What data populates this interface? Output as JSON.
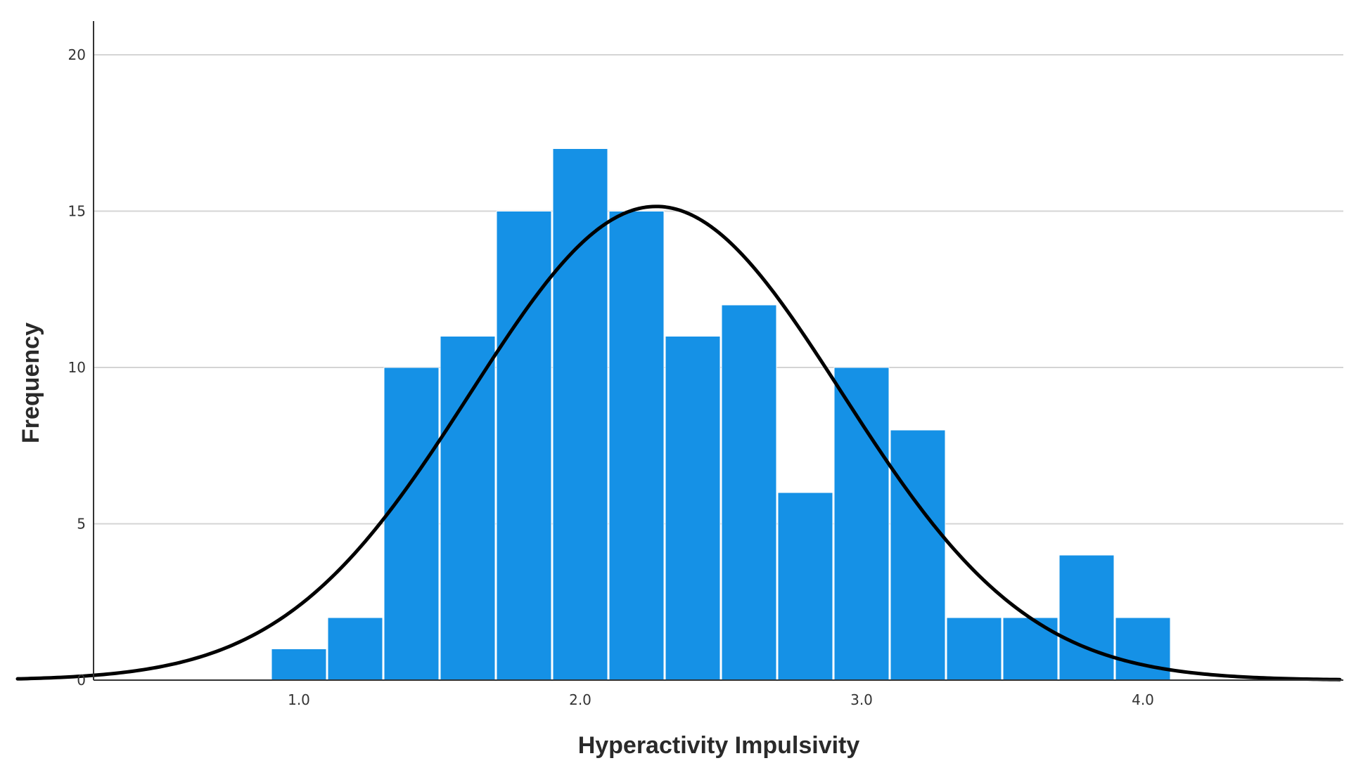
{
  "chart_data": {
    "type": "bar",
    "subtype": "histogram",
    "xlabel": "Hyperactivity Impulsivity",
    "ylabel": "Frequency",
    "x_ticks": [
      "1.0",
      "2.0",
      "3.0",
      "4.0"
    ],
    "x_tick_values": [
      1.0,
      2.0,
      3.0,
      4.0
    ],
    "y_ticks": [
      "0",
      "5",
      "10",
      "15",
      "20"
    ],
    "y_tick_values": [
      0,
      5,
      10,
      15,
      20
    ],
    "xlim": [
      0.0,
      4.7
    ],
    "ylim": [
      0,
      21
    ],
    "bin_width": 0.2,
    "bin_starts": [
      0.9,
      1.1,
      1.3,
      1.5,
      1.7,
      1.9,
      2.1,
      2.3,
      2.5,
      2.7,
      2.9,
      3.1,
      3.3,
      3.5,
      3.7,
      3.9
    ],
    "values": [
      1,
      2,
      10,
      11,
      15,
      17,
      15,
      11,
      12,
      6,
      10,
      8,
      2,
      2,
      4,
      2
    ],
    "normal_curve": {
      "mean": 2.27,
      "peak": 15.15,
      "sd": 0.66
    },
    "grid": true,
    "colors": {
      "bar": "#1591e6",
      "bar_edge": "#ffffff",
      "curve": "#000000",
      "grid": "#d4d4d4"
    }
  }
}
